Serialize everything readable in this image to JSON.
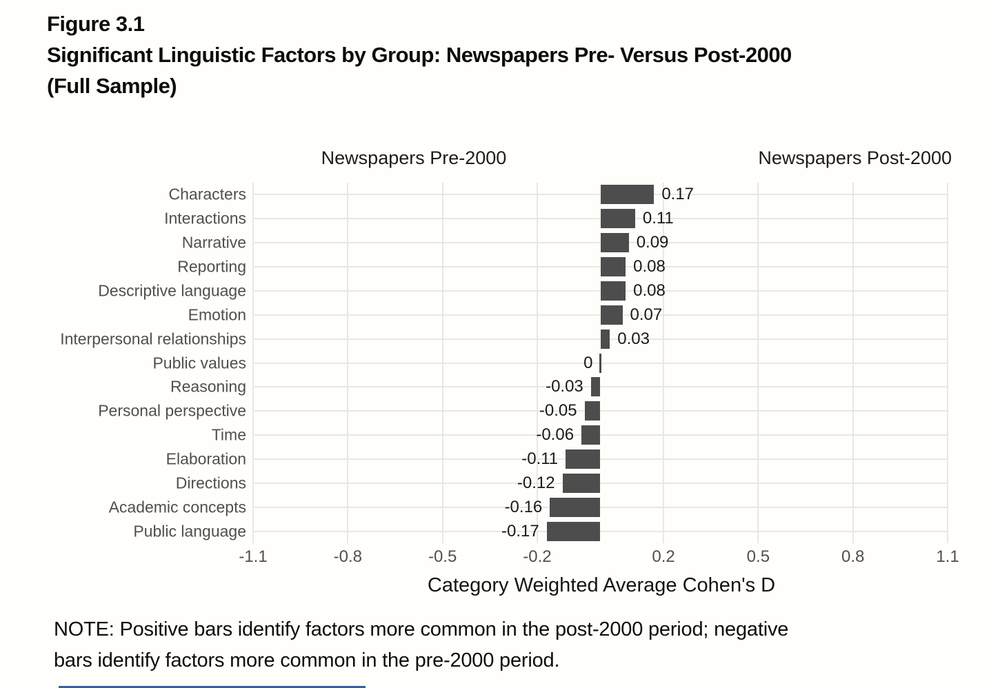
{
  "figure": {
    "label": "Figure 3.1",
    "title_lines": [
      "Significant Linguistic Factors by Group: Newspapers Pre- Versus Post-2000",
      "(Full Sample)"
    ],
    "note_lines": [
      "NOTE: Positive bars identify factors more common in the post-2000 period; negative",
      "bars identify factors more common in the pre-2000 period."
    ]
  },
  "chart_data": {
    "type": "bar",
    "orientation": "horizontal",
    "group_left_label": "Newspapers Pre-2000",
    "group_right_label": "Newspapers Post-2000",
    "categories": [
      "Characters",
      "Interactions",
      "Narrative",
      "Reporting",
      "Descriptive language",
      "Emotion",
      "Interpersonal relationships",
      "Public values",
      "Reasoning",
      "Personal perspective",
      "Time",
      "Elaboration",
      "Directions",
      "Academic concepts",
      "Public language"
    ],
    "values": [
      0.17,
      0.11,
      0.09,
      0.08,
      0.08,
      0.07,
      0.03,
      0,
      -0.03,
      -0.05,
      -0.06,
      -0.11,
      -0.12,
      -0.16,
      -0.17
    ],
    "value_labels": [
      "0.17",
      "0.11",
      "0.09",
      "0.08",
      "0.08",
      "0.07",
      "0.03",
      "0",
      "-0.03",
      "-0.05",
      "-0.06",
      "-0.11",
      "-0.12",
      "-0.16",
      "-0.17"
    ],
    "xlabel": "Category Weighted Average Cohen's D",
    "x_ticks": [
      -1.1,
      -0.8,
      -0.5,
      -0.2,
      0.2,
      0.5,
      0.8,
      1.1
    ],
    "x_tick_labels": [
      "-1.1",
      "-0.8",
      "-0.5",
      "-0.2",
      "0.2",
      "0.5",
      "0.8",
      "1.1"
    ],
    "xlim": [
      -1.1,
      1.1
    ],
    "grid": true,
    "legend": "none",
    "bar_color": "#4d4d4d",
    "grid_color": "#e7e7e4",
    "axis_text_color": "#4f4f4f",
    "value_text_color": "#1a1a1a",
    "accent_rule_color": "#33619e"
  }
}
